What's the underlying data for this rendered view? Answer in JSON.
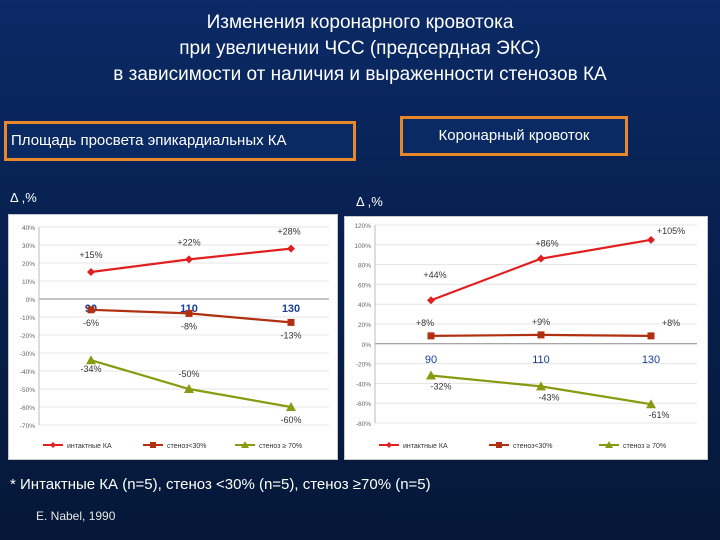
{
  "title_lines": [
    "Изменения коронарного кровотока",
    "при увеличении ЧСС (предсердная ЭКС)",
    "в зависимости от наличия и выраженности стенозов КА"
  ],
  "labels": {
    "left_box": "Площадь просвета эпикардиальных КА",
    "right_box": "Коронарный кровоток",
    "left_delta": "Δ ,%",
    "right_delta": "Δ ,%"
  },
  "footnote": "* Интактные КА (n=5), стеноз <30% (n=5), стеноз ≥70% (n=5)",
  "source": "E. Nabel, 1990",
  "colors": {
    "intact": "#e02020",
    "sten30": "#b03010",
    "sten70": "#8a9a10",
    "boxBorder": "#e8862a",
    "accentText": "#1a3f9a"
  },
  "chart_data": [
    {
      "type": "line",
      "x": [
        "90",
        "110",
        "130"
      ],
      "ylim": [
        -70,
        40
      ],
      "yticks": [
        "40%",
        "30%",
        "20%",
        "10%",
        "0%",
        "-10%",
        "-20%",
        "-30%",
        "-40%",
        "-50%",
        "-60%",
        "-70%"
      ],
      "tick_values": [
        40,
        30,
        20,
        10,
        0,
        -10,
        -20,
        -30,
        -40,
        -50,
        -60,
        -70
      ],
      "legend": "bottom",
      "series": [
        {
          "name": "интактные КА",
          "values": [
            15,
            22,
            28
          ],
          "labels": [
            "+15%",
            "+22%",
            "+28%"
          ]
        },
        {
          "name": "стеноз<30%",
          "values": [
            -6,
            -8,
            -13
          ],
          "labels": [
            "-6%",
            "-8%",
            "-13%"
          ]
        },
        {
          "name": "стеноз ≥ 70%",
          "values": [
            -34,
            -50,
            -60
          ],
          "labels": [
            "-34%",
            "-50%",
            "-60%"
          ]
        }
      ]
    },
    {
      "type": "line",
      "x": [
        "90",
        "110",
        "130"
      ],
      "ylim": [
        -60,
        120
      ],
      "yticks": [
        "120%",
        "100%",
        "80%",
        "60%",
        "40%",
        "20%",
        "0%",
        "-20%",
        "-40%",
        "-60%",
        "-80%"
      ],
      "tick_values": [
        120,
        100,
        80,
        60,
        40,
        20,
        0,
        -20,
        -40,
        -60,
        -80
      ],
      "legend": "bottom",
      "series": [
        {
          "name": "интактные КА",
          "values": [
            44,
            86,
            105
          ],
          "labels": [
            "+44%",
            "+86%",
            "+105%"
          ]
        },
        {
          "name": "стеноз<30%",
          "values": [
            8,
            9,
            8
          ],
          "labels": [
            "+8%",
            "+9%",
            "+8%"
          ]
        },
        {
          "name": "стеноз ≥ 70%",
          "values": [
            -32,
            -43,
            -61
          ],
          "labels": [
            "-32%",
            "-43%",
            "-61%"
          ]
        }
      ]
    }
  ]
}
